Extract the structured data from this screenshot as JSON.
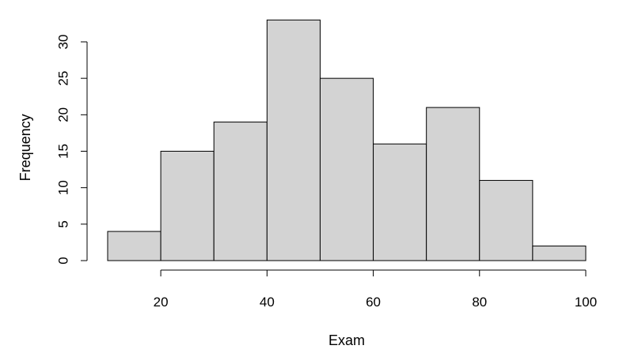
{
  "chart_data": {
    "type": "bar",
    "subtype": "histogram",
    "title": "",
    "xlabel": "Exam",
    "ylabel": "Frequency",
    "bins": [
      {
        "start": 10,
        "end": 20,
        "count": 4
      },
      {
        "start": 20,
        "end": 30,
        "count": 15
      },
      {
        "start": 30,
        "end": 40,
        "count": 19
      },
      {
        "start": 40,
        "end": 50,
        "count": 33
      },
      {
        "start": 50,
        "end": 60,
        "count": 25
      },
      {
        "start": 60,
        "end": 70,
        "count": 16
      },
      {
        "start": 70,
        "end": 80,
        "count": 21
      },
      {
        "start": 80,
        "end": 90,
        "count": 11
      },
      {
        "start": 90,
        "end": 100,
        "count": 2
      }
    ],
    "x_ticks": [
      20,
      40,
      60,
      80,
      100
    ],
    "y_ticks": [
      0,
      5,
      10,
      15,
      20,
      25,
      30
    ],
    "xlim": [
      10,
      100
    ],
    "ylim": [
      0,
      33
    ],
    "bar_color": "#d3d3d3",
    "grid": false,
    "legend": "none"
  }
}
